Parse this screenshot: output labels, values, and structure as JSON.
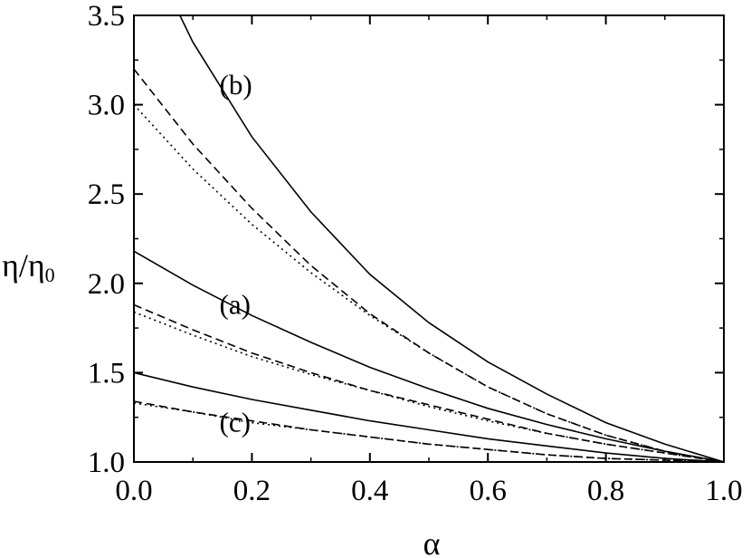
{
  "chart_data": {
    "type": "line",
    "title": "",
    "xlabel": "α",
    "ylabel_main": "η/η",
    "ylabel_sub": "0",
    "xlim": [
      0.0,
      1.0
    ],
    "ylim": [
      1.0,
      3.5
    ],
    "xticks": [
      0.0,
      0.2,
      0.4,
      0.6,
      0.8,
      1.0
    ],
    "xtick_labels": [
      "0.0",
      "0.2",
      "0.4",
      "0.6",
      "0.8",
      "1.0"
    ],
    "yticks": [
      1.0,
      1.5,
      2.0,
      2.5,
      3.0,
      3.5
    ],
    "ytick_labels": [
      "1.0",
      "1.5",
      "2.0",
      "2.5",
      "3.0",
      "3.5"
    ],
    "grid": false,
    "legend": "none",
    "x": [
      0.0,
      0.1,
      0.2,
      0.3,
      0.4,
      0.5,
      0.6,
      0.7,
      0.8,
      0.9,
      1.0
    ],
    "series": [
      {
        "group": "a",
        "style": "solid",
        "values": [
          2.18,
          1.99,
          1.82,
          1.67,
          1.53,
          1.41,
          1.3,
          1.21,
          1.13,
          1.06,
          1.0
        ]
      },
      {
        "group": "a",
        "style": "dashed",
        "values": [
          1.88,
          1.74,
          1.61,
          1.5,
          1.4,
          1.32,
          1.24,
          1.16,
          1.1,
          1.05,
          1.0
        ]
      },
      {
        "group": "a",
        "style": "dotted",
        "values": [
          1.84,
          1.71,
          1.59,
          1.49,
          1.4,
          1.31,
          1.23,
          1.16,
          1.1,
          1.05,
          1.0
        ]
      },
      {
        "group": "b",
        "style": "solid",
        "values": [
          4.03,
          3.35,
          2.82,
          2.4,
          2.05,
          1.78,
          1.56,
          1.38,
          1.22,
          1.1,
          1.0
        ]
      },
      {
        "group": "b",
        "style": "dashed",
        "values": [
          3.2,
          2.78,
          2.42,
          2.1,
          1.83,
          1.61,
          1.42,
          1.27,
          1.15,
          1.06,
          1.0
        ]
      },
      {
        "group": "b",
        "style": "dotted",
        "values": [
          3.0,
          2.64,
          2.33,
          2.06,
          1.82,
          1.61,
          1.42,
          1.27,
          1.15,
          1.06,
          1.0
        ]
      },
      {
        "group": "c",
        "style": "solid",
        "values": [
          1.5,
          1.42,
          1.35,
          1.29,
          1.23,
          1.18,
          1.13,
          1.09,
          1.05,
          1.02,
          1.0
        ]
      },
      {
        "group": "c",
        "style": "dashed",
        "values": [
          1.34,
          1.28,
          1.23,
          1.18,
          1.14,
          1.1,
          1.07,
          1.04,
          1.02,
          1.01,
          1.0
        ]
      },
      {
        "group": "c",
        "style": "dotted",
        "values": [
          1.33,
          1.28,
          1.22,
          1.18,
          1.14,
          1.1,
          1.07,
          1.04,
          1.02,
          1.01,
          1.0
        ]
      }
    ],
    "annotations": [
      {
        "text": "(a)",
        "x": 0.145,
        "y": 1.83
      },
      {
        "text": "(b)",
        "x": 0.145,
        "y": 3.06
      },
      {
        "text": "(c)",
        "x": 0.145,
        "y": 1.17
      }
    ]
  }
}
